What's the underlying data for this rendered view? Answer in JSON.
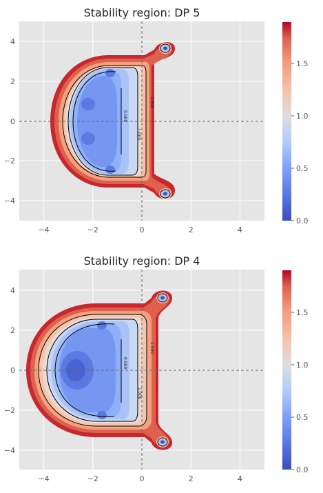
{
  "colors": {
    "axes_background": "#e5e5e5",
    "grid": "#ffffff",
    "contour_line": "#000000",
    "axis_lines": "#666666",
    "colormap": "coolwarm"
  },
  "chart_data": [
    {
      "type": "heatmap",
      "subtype": "filled-contour",
      "title": "Stability region: DP 5",
      "xlabel": "",
      "ylabel": "",
      "xlim": [
        -5,
        5
      ],
      "ylim": [
        -5,
        5
      ],
      "xticks": [
        -4,
        -2,
        0,
        2,
        4
      ],
      "yticks": [
        -4,
        -2,
        0,
        2,
        4
      ],
      "x_tick_labels": [
        "−4",
        "−2",
        "0",
        "2",
        "4"
      ],
      "y_tick_labels": [
        "4",
        "2",
        "0",
        "−2",
        "−4"
      ],
      "grid": true,
      "reference_lines": [
        "x = 0",
        "y = 0"
      ],
      "colorbar": {
        "range": [
          0,
          1.9
        ],
        "ticks": [
          0.0,
          0.5,
          1.0,
          1.5
        ],
        "tick_labels": [
          "0.0",
          "0.5",
          "1.0",
          "1.5"
        ]
      },
      "contour_levels": [
        0.5,
        1.0,
        1.5
      ],
      "contour_labels": [
        "0.500",
        "1.000",
        "1.500"
      ],
      "stable_region": {
        "left_extent": -3.65,
        "right_extent": 1.0,
        "top_extent": 3.95,
        "bottom_extent": -3.95,
        "lobes": [
          {
            "x": 0.95,
            "y": 3.65
          },
          {
            "x": 0.95,
            "y": -3.65
          }
        ],
        "minima": [
          {
            "x": -2.2,
            "y": 0.85
          },
          {
            "x": -2.2,
            "y": -0.85
          },
          {
            "x": -1.5,
            "y": 2.45
          },
          {
            "x": -1.5,
            "y": -2.45
          }
        ]
      }
    },
    {
      "type": "heatmap",
      "subtype": "filled-contour",
      "title": "Stability region: DP 4",
      "xlabel": "",
      "ylabel": "",
      "xlim": [
        -5,
        5
      ],
      "ylim": [
        -5,
        5
      ],
      "xticks": [
        -4,
        -2,
        0,
        2,
        4
      ],
      "yticks": [
        -4,
        -2,
        0,
        2,
        4
      ],
      "x_tick_labels": [
        "−4",
        "−2",
        "0",
        "2",
        "4"
      ],
      "y_tick_labels": [
        "4",
        "2",
        "0",
        "−2",
        "−4"
      ],
      "grid": true,
      "reference_lines": [
        "x = 0",
        "y = 0"
      ],
      "colorbar": {
        "range": [
          0,
          1.9
        ],
        "ticks": [
          0.0,
          0.5,
          1.0,
          1.5
        ],
        "tick_labels": [
          "0.0",
          "0.5",
          "1.0",
          "1.5"
        ]
      },
      "contour_levels": [
        0.5,
        1.0,
        1.5
      ],
      "contour_labels": [
        "0.500",
        "1.000",
        "1.500"
      ],
      "stable_region": {
        "left_extent": -4.7,
        "right_extent": 0.95,
        "top_extent": 4.0,
        "bottom_extent": -4.0,
        "lobes": [
          {
            "x": 0.85,
            "y": 3.65
          },
          {
            "x": 0.85,
            "y": -3.65
          }
        ],
        "minima": [
          {
            "x": -3.0,
            "y": 0.0
          },
          {
            "x": -1.7,
            "y": 2.25
          },
          {
            "x": -1.7,
            "y": -2.25
          }
        ]
      }
    }
  ]
}
